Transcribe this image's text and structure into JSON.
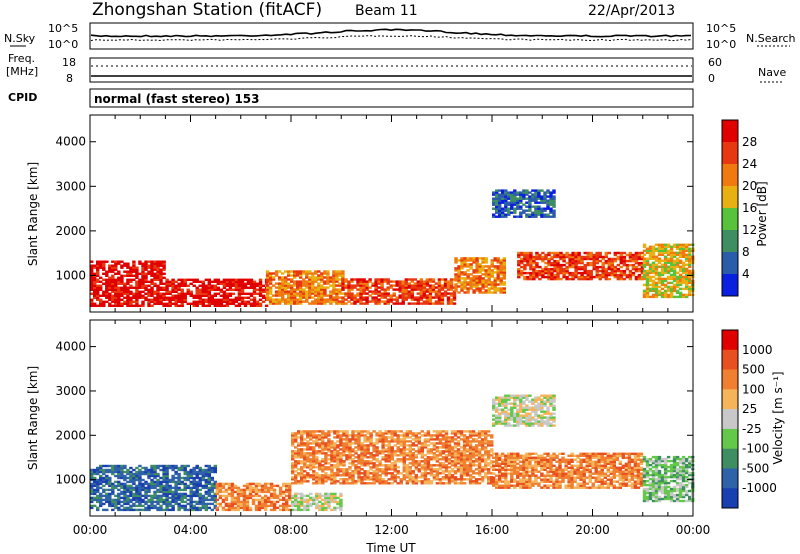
{
  "header": {
    "station_title": "Zhongshan Station (fitACF)",
    "beam_label": "Beam 11",
    "date_label": "22/Apr/2013"
  },
  "noise_panel": {
    "left_label": "N.Sky",
    "right_label": "N.Search",
    "left_ticks": [
      "10^5",
      "10^0"
    ],
    "right_ticks": [
      "10^5",
      "10^0"
    ]
  },
  "freq_panel": {
    "left_label_line1": "Freq.",
    "left_label_line2": "[MHz]",
    "left_ticks": [
      "18",
      "8"
    ],
    "right_label": "Nave",
    "right_ticks": [
      "60",
      "0"
    ]
  },
  "cpid": {
    "label": "CPID",
    "mode_text": "normal (fast stereo) 153"
  },
  "colors": {
    "bg": "#ffffff",
    "axis": "#000000"
  },
  "chart_data": [
    {
      "type": "heatmap",
      "name": "power",
      "ylabel": "Slant Range [km]",
      "ylim": [
        180,
        4600
      ],
      "yticks": [
        "1000",
        "2000",
        "3000",
        "4000"
      ],
      "xticks": [
        "00:00",
        "04:00",
        "08:00",
        "12:00",
        "16:00",
        "20:00",
        "00:00"
      ],
      "colorbar": {
        "label": "Power [dB]",
        "ticks": [
          "4",
          "8",
          "12",
          "16",
          "20",
          "24",
          "28"
        ],
        "colors": [
          "#0a1fe0",
          "#2b5caa",
          "#3f8e62",
          "#58c23a",
          "#e8b010",
          "#f07a10",
          "#e83810",
          "#e00000"
        ]
      },
      "regions": [
        {
          "t": [
            0.0,
            3.0
          ],
          "r": [
            300,
            1300
          ],
          "level": 7
        },
        {
          "t": [
            3.0,
            7.0
          ],
          "r": [
            300,
            900
          ],
          "level": 7
        },
        {
          "t": [
            7.0,
            10.0
          ],
          "r": [
            350,
            1100
          ],
          "level": 5
        },
        {
          "t": [
            10.0,
            14.5
          ],
          "r": [
            350,
            900
          ],
          "level": 6
        },
        {
          "t": [
            14.5,
            16.5
          ],
          "r": [
            600,
            1400
          ],
          "level": 5
        },
        {
          "t": [
            16.0,
            18.5
          ],
          "r": [
            2300,
            2900
          ],
          "level": 1
        },
        {
          "t": [
            17.0,
            22.0
          ],
          "r": [
            900,
            1500
          ],
          "level": 6
        },
        {
          "t": [
            22.0,
            24.0
          ],
          "r": [
            500,
            1700
          ],
          "level": 4
        }
      ]
    },
    {
      "type": "heatmap",
      "name": "velocity",
      "ylabel": "Slant Range [km]",
      "ylim": [
        180,
        4600
      ],
      "yticks": [
        "1000",
        "2000",
        "3000",
        "4000"
      ],
      "xticks": [
        "00:00",
        "04:00",
        "08:00",
        "12:00",
        "16:00",
        "20:00",
        "00:00"
      ],
      "xlabel": "Time UT",
      "colorbar": {
        "label": "Velocity [m s⁻¹]",
        "ticks": [
          "1000",
          "500",
          "100",
          "25",
          "-25",
          "-100",
          "-500",
          "-1000"
        ],
        "colors": [
          "#1a3fb0",
          "#2f62a8",
          "#3f8e62",
          "#64c84a",
          "#c8c8c8",
          "#f5b45a",
          "#f08030",
          "#e85020",
          "#e00000"
        ]
      },
      "regions": [
        {
          "t": [
            0.0,
            5.0
          ],
          "r": [
            300,
            1300
          ],
          "level": 1
        },
        {
          "t": [
            5.0,
            8.0
          ],
          "r": [
            300,
            900
          ],
          "level": 6
        },
        {
          "t": [
            8.0,
            10.0
          ],
          "r": [
            300,
            700
          ],
          "level": 4
        },
        {
          "t": [
            8.0,
            16.0
          ],
          "r": [
            900,
            2100
          ],
          "level": 6
        },
        {
          "t": [
            16.0,
            18.5
          ],
          "r": [
            2200,
            2900
          ],
          "level": 4
        },
        {
          "t": [
            16.0,
            22.0
          ],
          "r": [
            800,
            1600
          ],
          "level": 6
        },
        {
          "t": [
            22.0,
            24.0
          ],
          "r": [
            500,
            1500
          ],
          "level": 3
        }
      ]
    }
  ]
}
